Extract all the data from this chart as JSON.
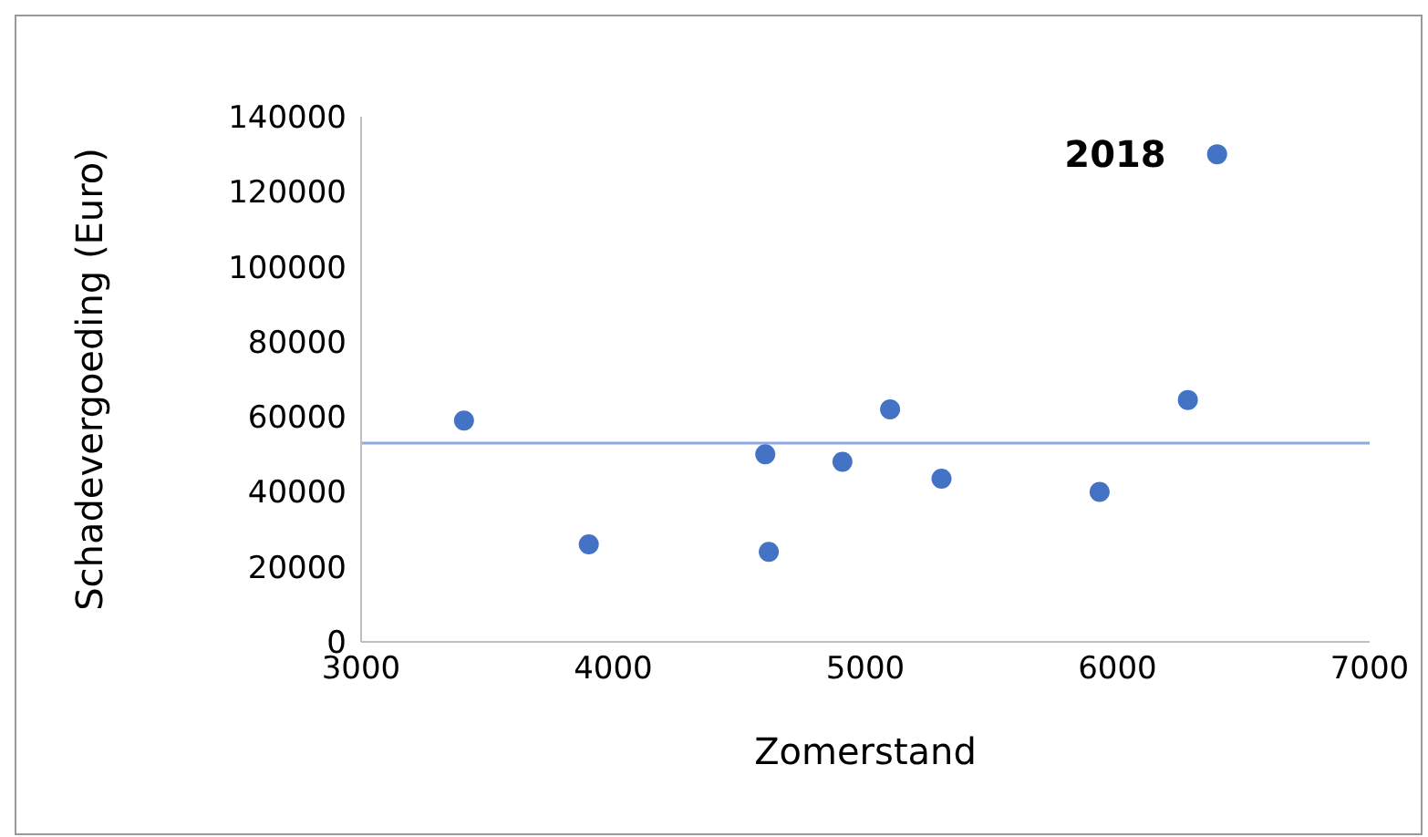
{
  "chart_data": {
    "type": "scatter",
    "xlabel": "Zomerstand",
    "ylabel": "Schadevergoeding (Euro)",
    "x": [
      3408,
      3903,
      4603,
      4617,
      4909,
      5098,
      5302,
      5929,
      6279,
      6395
    ],
    "values": [
      59000,
      26000,
      50000,
      24000,
      48000,
      62000,
      43500,
      40000,
      64500,
      130000
    ],
    "color": "#4472c4",
    "marker": "circle",
    "xlim": [
      3000,
      7000
    ],
    "xticks": [
      3000,
      4000,
      5000,
      6000,
      7000
    ],
    "ylim": [
      0,
      140000
    ],
    "yticks": [
      0,
      20000,
      40000,
      60000,
      80000,
      100000,
      120000,
      140000
    ],
    "grid": false,
    "legend": false,
    "ref_lines": [
      {
        "axis": "y",
        "value": 53000,
        "color": "#8faadc"
      }
    ],
    "annotations": [
      {
        "text": "2018",
        "x": 6395,
        "y": 130000
      }
    ]
  }
}
